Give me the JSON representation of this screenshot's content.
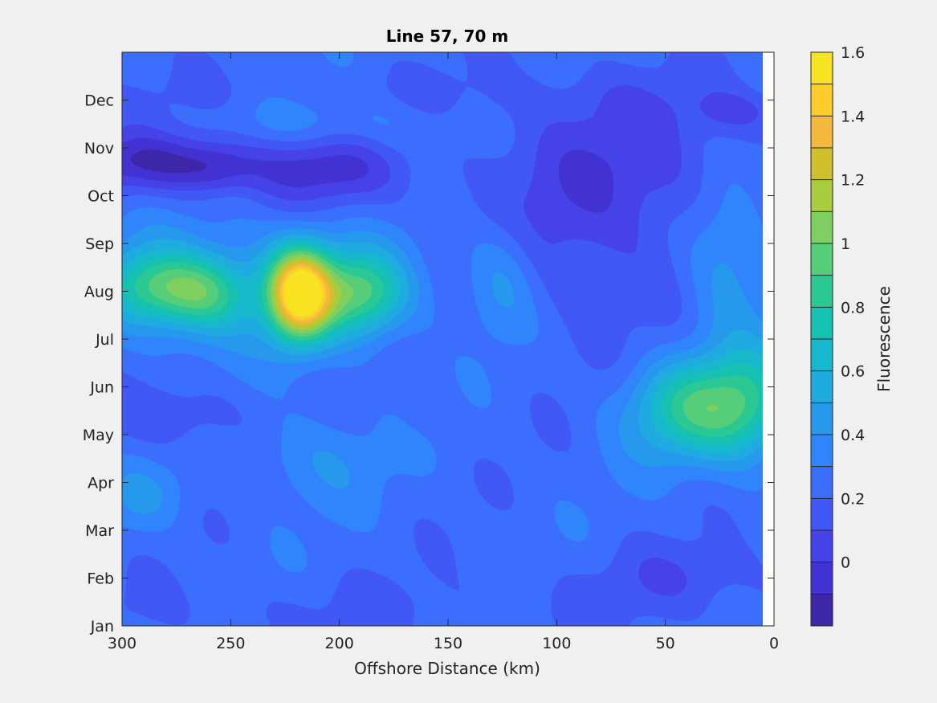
{
  "chart_data": {
    "type": "heatmap",
    "subtype": "filled-contour",
    "title": "Line 57, 70 m",
    "xlabel": "Offshore Distance (km)",
    "ylabel": "",
    "x_reversed": true,
    "xlim": [
      300,
      0
    ],
    "x_ticks": [
      300,
      250,
      200,
      150,
      100,
      50,
      0
    ],
    "x_tick_labels": [
      "300",
      "250",
      "200",
      "150",
      "100",
      "50",
      "0"
    ],
    "data_extent_x": [
      300,
      5
    ],
    "y_tick_labels": [
      "Jan",
      "Feb",
      "Mar",
      "Apr",
      "May",
      "Jun",
      "Jul",
      "Aug",
      "Sep",
      "Oct",
      "Nov",
      "Dec"
    ],
    "colorbar": {
      "label": "Fluorescence",
      "range": [
        -0.2,
        1.6
      ],
      "levels": [
        -0.2,
        -0.1,
        0,
        0.1,
        0.2,
        0.3,
        0.4,
        0.5,
        0.6,
        0.7,
        0.8,
        0.9,
        1.0,
        1.1,
        1.2,
        1.3,
        1.4,
        1.5,
        1.6
      ],
      "colors": [
        "#3e26a8",
        "#4232d2",
        "#4543e8",
        "#4258f6",
        "#3b6efd",
        "#3085fc",
        "#2699ec",
        "#1fabe0",
        "#17b8cc",
        "#16c1b1",
        "#2bc894",
        "#55cd79",
        "#7fcf60",
        "#a8cc3d",
        "#d1c02c",
        "#f3b83d",
        "#fdcd2d",
        "#f8e322"
      ],
      "tick_values": [
        0,
        0.2,
        0.4,
        0.6,
        0.8,
        1,
        1.2,
        1.4,
        1.6
      ],
      "tick_labels": [
        "0",
        "0.2",
        "0.4",
        "0.6",
        "0.8",
        "1",
        "1.2",
        "1.4",
        "1.6"
      ]
    },
    "background_value": 0.25,
    "features": [
      {
        "x": 218,
        "y": 6.95,
        "sx": 10,
        "sy": 0.65,
        "amp": 1.3
      },
      {
        "x": 190,
        "y": 6.95,
        "sx": 14,
        "sy": 0.6,
        "amp": 0.55
      },
      {
        "x": 262,
        "y": 6.95,
        "sx": 14,
        "sy": 0.55,
        "amp": 0.45
      },
      {
        "x": 286,
        "y": 7.1,
        "sx": 15,
        "sy": 0.55,
        "amp": 0.45
      },
      {
        "x": 240,
        "y": 7.05,
        "sx": 55,
        "sy": 0.9,
        "amp": 0.22
      },
      {
        "x": 35,
        "y": 4.55,
        "sx": 22,
        "sy": 0.75,
        "amp": 0.6
      },
      {
        "x": 10,
        "y": 4.7,
        "sx": 14,
        "sy": 0.9,
        "amp": 0.3
      },
      {
        "x": 22,
        "y": 7.6,
        "sx": 14,
        "sy": 1.2,
        "amp": 0.25
      },
      {
        "x": 125,
        "y": 7.3,
        "sx": 12,
        "sy": 0.9,
        "amp": 0.22
      },
      {
        "x": 210,
        "y": 3.5,
        "sx": 22,
        "sy": 0.7,
        "amp": 0.15
      },
      {
        "x": 290,
        "y": 2.7,
        "sx": 14,
        "sy": 0.5,
        "amp": 0.15
      },
      {
        "x": 200,
        "y": 10.45,
        "sx": 35,
        "sy": 0.45,
        "amp": 0.15
      },
      {
        "x": 285,
        "y": 9.7,
        "sx": 30,
        "sy": 0.45,
        "amp": -0.35
      },
      {
        "x": 258,
        "y": 9.55,
        "sx": 12,
        "sy": 0.35,
        "amp": -0.15
      },
      {
        "x": 208,
        "y": 9.6,
        "sx": 25,
        "sy": 0.55,
        "amp": -0.3
      },
      {
        "x": 85,
        "y": 8.5,
        "sx": 40,
        "sy": 1.8,
        "amp": -0.18
      },
      {
        "x": 60,
        "y": 9.8,
        "sx": 40,
        "sy": 1.0,
        "amp": -0.1
      },
      {
        "x": 15,
        "y": 10.75,
        "sx": 14,
        "sy": 0.3,
        "amp": -0.15
      },
      {
        "x": 40,
        "y": 1.05,
        "sx": 30,
        "sy": 0.5,
        "amp": -0.12
      },
      {
        "x": 180,
        "y": 0.3,
        "sx": 130,
        "sy": 0.5,
        "amp": -0.06
      },
      {
        "x": 275,
        "y": 4.4,
        "sx": 22,
        "sy": 0.5,
        "amp": -0.15
      },
      {
        "x": 160,
        "y": 4.5,
        "sx": 8,
        "sy": 0.35,
        "amp": -0.05
      },
      {
        "x": 200,
        "y": 11.1,
        "sx": 150,
        "sy": 0.4,
        "amp": -0.05
      }
    ]
  }
}
